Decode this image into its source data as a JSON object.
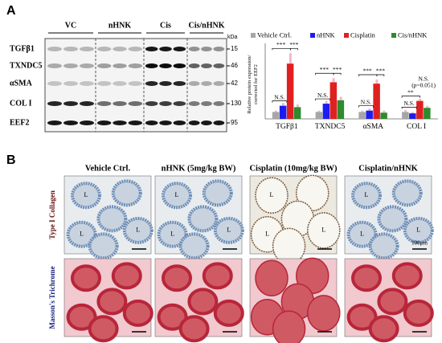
{
  "panels": {
    "a": "A",
    "b": "B"
  },
  "blot": {
    "groups": [
      "VC",
      "nHNK",
      "Cis",
      "Cis/nHNK"
    ],
    "rows": [
      {
        "name": "TGFβ1",
        "kda": "15"
      },
      {
        "name": "TXNDC5",
        "kda": "46"
      },
      {
        "name": "αSMA",
        "kda": "42"
      },
      {
        "name": "COL I",
        "kda": "130"
      },
      {
        "name": "EEF2",
        "kda": "95"
      }
    ],
    "kda_unit": "kDa"
  },
  "chart_data": {
    "type": "bar",
    "y_label": [
      "Relative protein expression/",
      "corrected for EEF2"
    ],
    "categories": [
      "TGFβ1",
      "TXNDC5",
      "αSMA",
      "COL I"
    ],
    "series": [
      {
        "name": "Vehicle Ctrl.",
        "color": "#a6a6a6",
        "values": [
          1,
          1,
          1,
          1
        ],
        "errors": [
          0.2,
          0.2,
          0.2,
          0.3
        ]
      },
      {
        "name": "nHNK",
        "color": "#1c1cf0",
        "values": [
          1.9,
          2.2,
          1.2,
          0.8
        ],
        "errors": [
          0.4,
          0.4,
          0.3,
          0.2
        ]
      },
      {
        "name": "Cisplatin",
        "color": "#e02020",
        "values": [
          8,
          5.3,
          5.1,
          2.6
        ],
        "errors": [
          1.5,
          0.6,
          0.6,
          0.3
        ]
      },
      {
        "name": "Cis/nHNK",
        "color": "#2e8b2e",
        "values": [
          1.7,
          2.7,
          0.9,
          1.6
        ],
        "errors": [
          0.4,
          0.5,
          0.3,
          0.3
        ]
      }
    ],
    "ylim": [
      0,
      10
    ],
    "significance": [
      [
        "N.S.",
        "***",
        "***"
      ],
      [
        "N.S.",
        "***",
        "***"
      ],
      [
        "N.S.",
        "***",
        "***"
      ],
      [
        "N.S.",
        "**",
        "N.S.",
        "(p=0.051)"
      ]
    ]
  },
  "histology": {
    "columns": [
      "Vehicle Ctrl.",
      "nHNK (5mg/kg BW)",
      "Cisplatin (10mg/kg BW)",
      "Cisplatin/nHNK"
    ],
    "rows": [
      "Type I Collagen",
      "Masson's Trichrome"
    ],
    "lumen_label": "L",
    "scale": "100µm"
  }
}
